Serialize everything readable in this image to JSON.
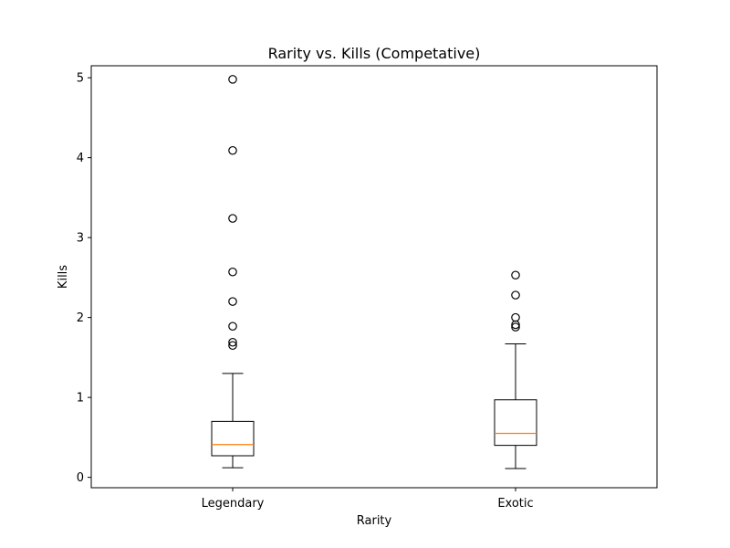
{
  "chart_data": {
    "type": "box",
    "title": "Rarity vs. Kills (Competative)",
    "xlabel": "Rarity",
    "ylabel": "Kills",
    "ylim": [
      -0.13,
      5.15
    ],
    "yticks": [
      0,
      1,
      2,
      3,
      4,
      5
    ],
    "grid": false,
    "legend": "none",
    "colors": {
      "box": "#000000",
      "median": "#ff7f0e",
      "background": "#ffffff"
    },
    "categories": [
      "Legendary",
      "Exotic"
    ],
    "boxes": [
      {
        "category": "Legendary",
        "whisker_low": 0.12,
        "q1": 0.27,
        "median": 0.41,
        "q3": 0.7,
        "whisker_high": 1.3,
        "outliers": [
          4.98,
          4.09,
          3.24,
          2.57,
          2.2,
          1.89,
          1.69,
          1.65
        ]
      },
      {
        "category": "Exotic",
        "whisker_low": 0.11,
        "q1": 0.4,
        "median": 0.55,
        "q3": 0.97,
        "whisker_high": 1.67,
        "outliers": [
          2.53,
          2.28,
          2.0,
          1.91,
          1.88
        ]
      }
    ]
  }
}
